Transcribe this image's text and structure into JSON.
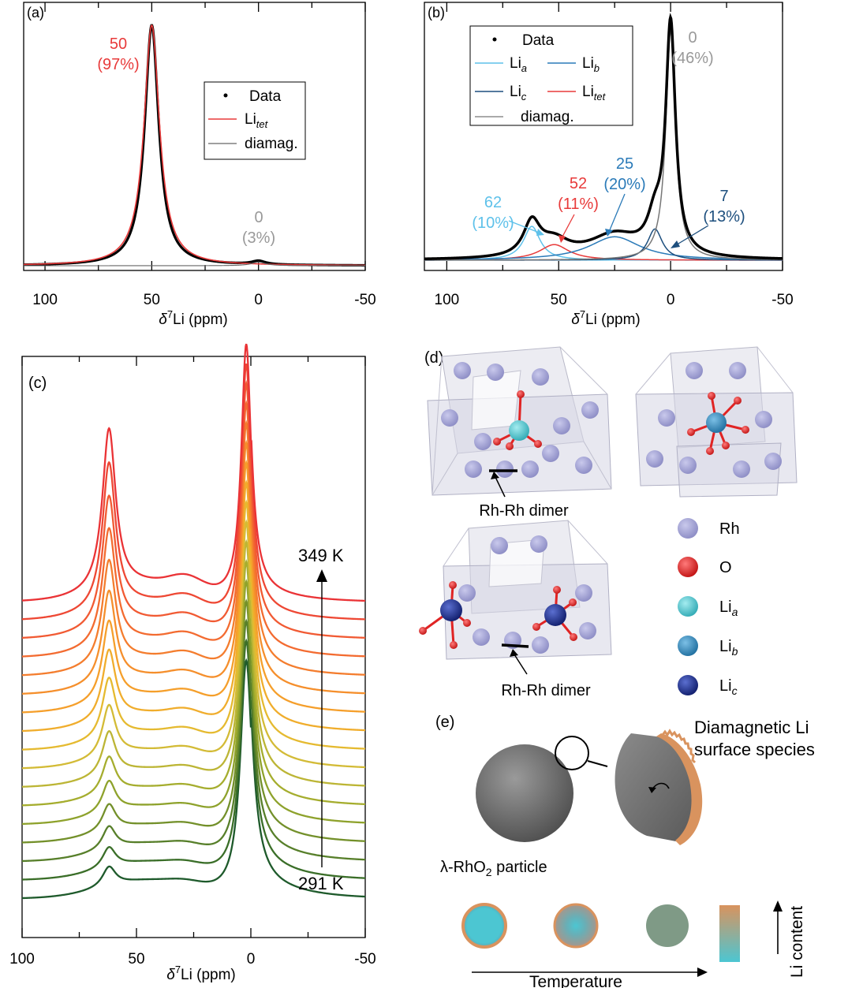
{
  "chart_data": [
    {
      "panel": "(a)",
      "type": "line",
      "xlabel": "δ⁷Li (ppm)",
      "xlim": [
        110,
        -50
      ],
      "xticks": [
        100,
        50,
        0,
        -50
      ],
      "legend": [
        "Data",
        "Litet",
        "diamag."
      ],
      "legend_placement": "top-right",
      "series": [
        {
          "name": "Data",
          "peaks": [
            {
              "center": 50,
              "height": 1.0,
              "width": 4.0
            },
            {
              "center": 0,
              "height": 0.015,
              "width": 4.0
            }
          ]
        },
        {
          "name": "Litet",
          "peaks": [
            {
              "center": 50,
              "height": 1.0,
              "width": 4.4
            }
          ]
        },
        {
          "name": "diamag.",
          "peaks": [
            {
              "center": 0,
              "height": 0.015,
              "width": 4.0
            }
          ]
        }
      ],
      "annotations": [
        {
          "text": "50",
          "sub": "(97%)",
          "x": 50,
          "color": "#e83a3a"
        },
        {
          "text": "0",
          "sub": "(3%)",
          "x": 0,
          "color": "#999999"
        }
      ]
    },
    {
      "panel": "(b)",
      "type": "line",
      "xlabel": "δ⁷Li (ppm)",
      "xlim": [
        110,
        -50
      ],
      "xticks": [
        100,
        50,
        0,
        -50
      ],
      "legend": [
        "Data",
        "Lia",
        "Lib",
        "Lic",
        "Litet",
        "diamag."
      ],
      "legend_placement": "top-left",
      "series": [
        {
          "name": "Lia",
          "peaks": [
            {
              "center": 62,
              "height": 0.13,
              "width": 4.5
            }
          ]
        },
        {
          "name": "Litet",
          "peaks": [
            {
              "center": 52,
              "height": 0.06,
              "width": 8
            }
          ]
        },
        {
          "name": "Lib",
          "peaks": [
            {
              "center": 25,
              "height": 0.09,
              "width": 14
            }
          ]
        },
        {
          "name": "Lic",
          "peaks": [
            {
              "center": 7,
              "height": 0.12,
              "width": 4
            }
          ]
        },
        {
          "name": "diamag.",
          "peaks": [
            {
              "center": 0,
              "height": 0.88,
              "width": 2.6
            }
          ]
        }
      ],
      "annotations": [
        {
          "text": "62",
          "sub": "(10%)",
          "x": 62,
          "color": "#5ec1ea"
        },
        {
          "text": "52",
          "sub": "(11%)",
          "x": 52,
          "color": "#e83a3a"
        },
        {
          "text": "25",
          "sub": "(20%)",
          "x": 25,
          "color": "#2a7ab8"
        },
        {
          "text": "7",
          "sub": "(13%)",
          "x": 7,
          "color": "#1d4f7e"
        },
        {
          "text": "0",
          "sub": "(46%)",
          "x": 0,
          "color": "#999999"
        }
      ]
    },
    {
      "panel": "(c)",
      "type": "line",
      "xlabel": "δ⁷Li (ppm)",
      "xlim": [
        100,
        -50
      ],
      "xticks": [
        100,
        50,
        0,
        -50
      ],
      "temperature_low": "291 K",
      "temperature_high": "349 K",
      "trace_count": 17,
      "peak_positions": [
        62,
        2
      ],
      "colors": [
        "#1e5a2b",
        "#3a6e28",
        "#577f2a",
        "#73902a",
        "#8ea22c",
        "#a5ad2e",
        "#bcb535",
        "#d3bb36",
        "#e5ba30",
        "#f0ad2c",
        "#f59f2b",
        "#f58f2c",
        "#f47d2e",
        "#f36b30",
        "#f15a33",
        "#ee4834",
        "#ea3336"
      ]
    }
  ],
  "labels": {
    "panel_a": "(a)",
    "panel_b": "(b)",
    "panel_c": "(c)",
    "panel_d": "(d)",
    "panel_e": "(e)",
    "data": "Data",
    "li": "Li",
    "tet": "tet",
    "a": "a",
    "b": "b",
    "c": "c",
    "diamag": "diamag.",
    "temp_low": "291 K",
    "temp_high": "349 K"
  },
  "structure": {
    "dimer_label": "Rh-Rh dimer",
    "legend": [
      {
        "label": "Rh",
        "sub": "",
        "color": "#a7a7d6"
      },
      {
        "label": "O",
        "sub": "",
        "color": "#e02424"
      },
      {
        "label": "Li",
        "sub": "a",
        "color": "#4cc6cc"
      },
      {
        "label": "Li",
        "sub": "b",
        "color": "#2a85b6"
      },
      {
        "label": "Li",
        "sub": "c",
        "color": "#1c2f8a"
      }
    ]
  },
  "panel_e": {
    "surface_label_line1": "Diamagnetic Li",
    "surface_label_line2": "surface species",
    "particle_label": "λ-RhO",
    "particle_sub": "2",
    "particle_suffix": " particle",
    "temperature_label": "Temperature",
    "li_content_label": "Li content"
  }
}
